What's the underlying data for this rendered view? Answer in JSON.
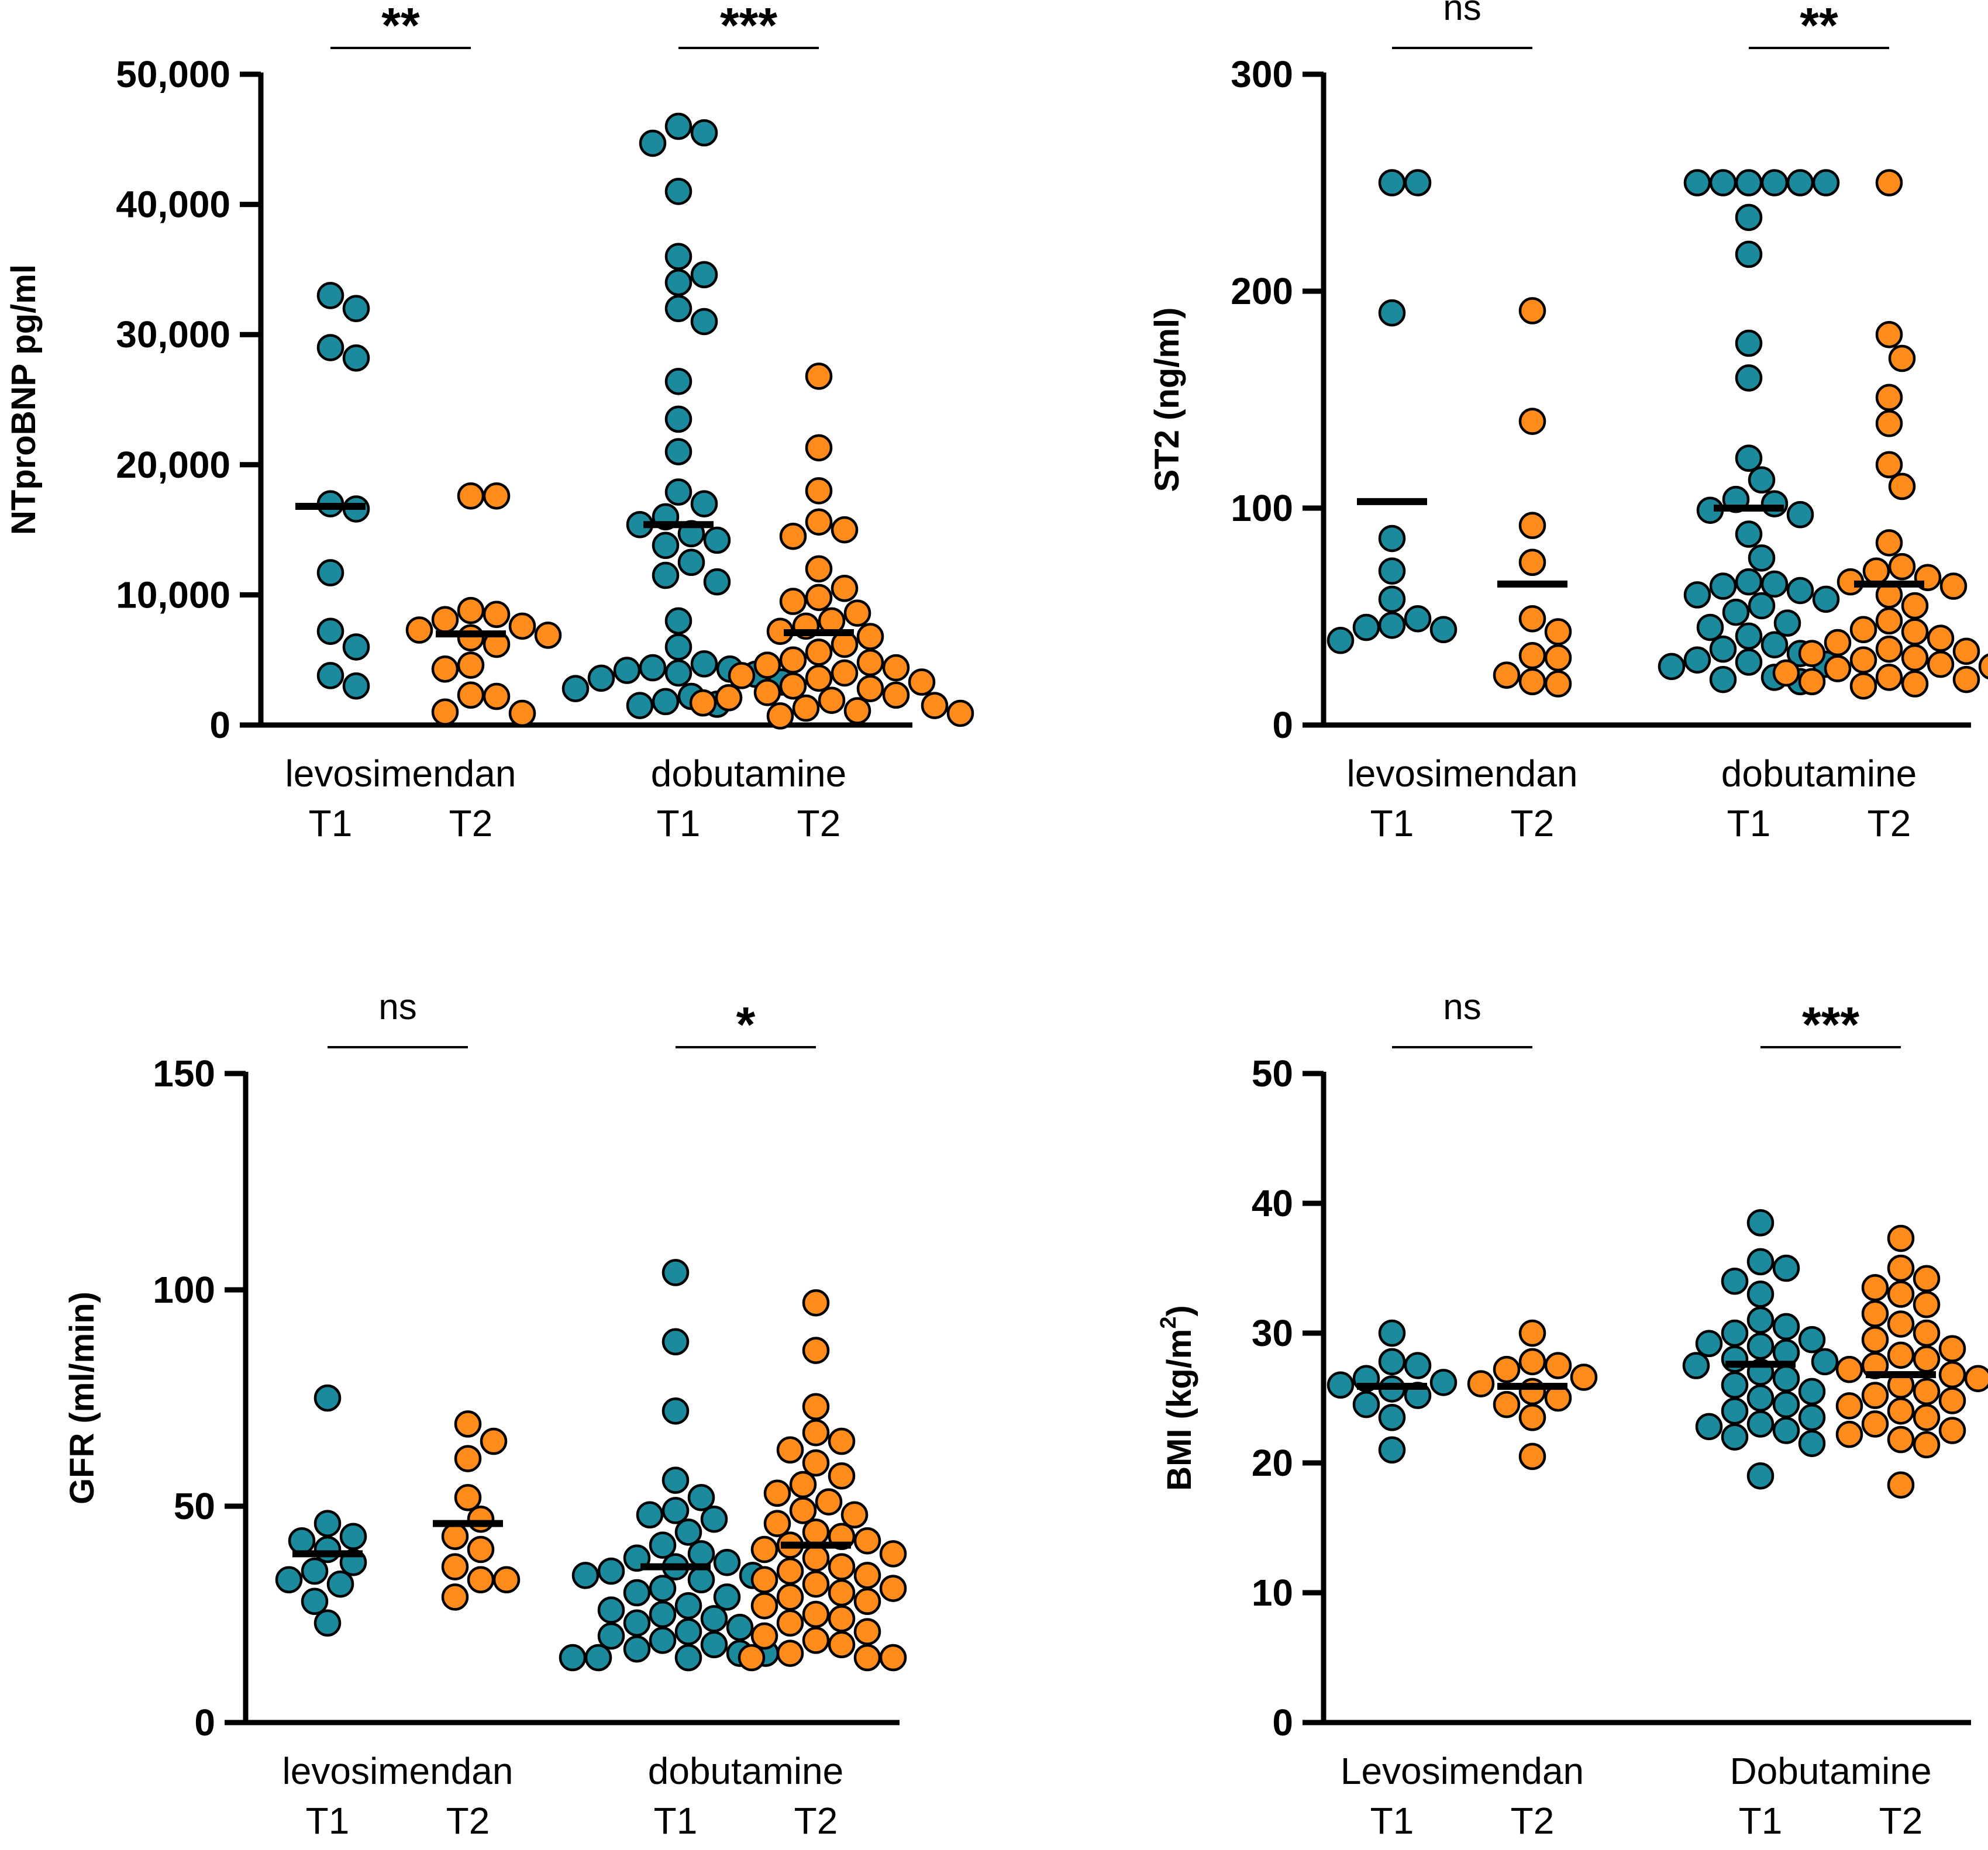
{
  "colors": {
    "t1": "#1b8a9c",
    "t2": "#ff8c1a",
    "axis": "#000000",
    "marker_edge": "#000000",
    "background": "#ffffff"
  },
  "chart_data": [
    {
      "id": "ntprobnp",
      "type": "scatter",
      "ylabel": "NTproBNP pg/ml",
      "ylim": [
        0,
        50000
      ],
      "yticks": [
        0,
        10000,
        20000,
        30000,
        40000,
        50000
      ],
      "ytick_labels": [
        "0",
        "10,000",
        "20,000",
        "30,000",
        "40,000",
        "50,000"
      ],
      "groups": [
        {
          "label": "levosimendan",
          "sig": "**",
          "series": [
            {
              "name": "T1",
              "mean": 16800,
              "values": [
                33000,
                32000,
                29000,
                28200,
                17000,
                16600,
                11700,
                7200,
                6000,
                3800,
                3000
              ]
            },
            {
              "name": "T2",
              "mean": 7000,
              "values": [
                17600,
                17600,
                8800,
                8500,
                8100,
                7600,
                7300,
                6900,
                6700,
                6200,
                4600,
                4300,
                2300,
                2200,
                1000,
                900
              ]
            }
          ]
        },
        {
          "label": "dobutamine",
          "sig": "***",
          "series": [
            {
              "name": "T1",
              "mean": 15400,
              "values": [
                46000,
                45500,
                44700,
                41000,
                36000,
                34600,
                34000,
                32000,
                31000,
                26400,
                23500,
                21000,
                17900,
                17000,
                16000,
                15400,
                14700,
                14200,
                13800,
                12500,
                11500,
                11000,
                8000,
                6000,
                4700,
                4400,
                4300,
                4200,
                4000,
                3900,
                3600,
                3300,
                2800,
                2200,
                1800,
                1600,
                1500
              ]
            },
            {
              "name": "T2",
              "mean": 7100,
              "values": [
                26800,
                21300,
                18000,
                15600,
                15000,
                14500,
                12000,
                10500,
                9800,
                9500,
                8600,
                8000,
                7600,
                7200,
                6800,
                6200,
                5600,
                5000,
                4800,
                4600,
                4400,
                4000,
                3800,
                3600,
                3300,
                3000,
                2800,
                2500,
                2300,
                2100,
                1900,
                1700,
                1500,
                1300,
                1100,
                900,
                700
              ]
            }
          ]
        }
      ]
    },
    {
      "id": "st2",
      "type": "scatter",
      "ylabel": "ST2 (ng/ml)",
      "ylim": [
        0,
        300
      ],
      "yticks": [
        0,
        100,
        200,
        300
      ],
      "ytick_labels": [
        "0",
        "100",
        "200",
        "300"
      ],
      "groups": [
        {
          "label": "levosimendan",
          "sig": "ns",
          "series": [
            {
              "name": "T1",
              "mean": 103,
              "values": [
                250,
                250,
                190,
                86,
                71,
                58,
                49,
                46,
                45,
                44,
                39
              ]
            },
            {
              "name": "T2",
              "mean": 65,
              "values": [
                191,
                140,
                92,
                75,
                49,
                43,
                32,
                31,
                23,
                20,
                19
              ]
            }
          ]
        },
        {
          "label": "dobutamine",
          "sig": "**",
          "series": [
            {
              "name": "T1",
              "mean": 100,
              "values": [
                250,
                250,
                250,
                250,
                250,
                250,
                234,
                217,
                176,
                160,
                123,
                113,
                104,
                102,
                99,
                97,
                88,
                77,
                66,
                65,
                64,
                62,
                60,
                58,
                55,
                52,
                47,
                45,
                41,
                37,
                35,
                33,
                30,
                29,
                28,
                27,
                22,
                21,
                20
              ]
            },
            {
              "name": "T2",
              "mean": 65,
              "values": [
                250,
                180,
                169,
                151,
                139,
                120,
                110,
                84,
                73,
                71,
                68,
                66,
                64,
                60,
                55,
                48,
                44,
                43,
                40,
                38,
                35,
                34,
                33,
                31,
                30,
                28,
                27,
                26,
                24,
                22,
                21,
                20,
                19,
                18,
                17
              ]
            }
          ]
        }
      ]
    },
    {
      "id": "gfr",
      "type": "scatter",
      "ylabel": "GFR (ml/min)",
      "ylim": [
        0,
        150
      ],
      "yticks": [
        0,
        50,
        100,
        150
      ],
      "ytick_labels": [
        "0",
        "50",
        "100",
        "150"
      ],
      "groups": [
        {
          "label": "levosimendan",
          "sig": "ns",
          "series": [
            {
              "name": "T1",
              "mean": 39,
              "values": [
                75,
                46,
                43,
                42,
                40,
                37,
                35,
                33,
                32,
                28,
                23
              ]
            },
            {
              "name": "T2",
              "mean": 46,
              "values": [
                69,
                65,
                61,
                52,
                47,
                43,
                40,
                36,
                33,
                33,
                29
              ]
            }
          ]
        },
        {
          "label": "dobutamine",
          "sig": "*",
          "series": [
            {
              "name": "T1",
              "mean": 36,
              "values": [
                104,
                88,
                72,
                56,
                52,
                49,
                48,
                47,
                44,
                41,
                39,
                38,
                37,
                36,
                35,
                34,
                34,
                33,
                31,
                30,
                29,
                27,
                26,
                25,
                24,
                23,
                22,
                21,
                20,
                19,
                18,
                17,
                16,
                16,
                15,
                15,
                15
              ]
            },
            {
              "name": "T2",
              "mean": 41,
              "values": [
                97,
                86,
                73,
                67,
                65,
                63,
                60,
                57,
                55,
                53,
                51,
                49,
                48,
                46,
                44,
                43,
                42,
                41,
                40,
                39,
                38,
                36,
                35,
                34,
                33,
                32,
                31,
                30,
                29,
                28,
                27,
                25,
                24,
                23,
                21,
                20,
                19,
                18,
                16,
                15,
                15,
                15
              ]
            }
          ]
        }
      ]
    },
    {
      "id": "bmi",
      "type": "scatter",
      "ylabel": "BMI (kg/m²)",
      "ylim": [
        0,
        50
      ],
      "yticks": [
        0,
        10,
        20,
        30,
        40,
        50
      ],
      "ytick_labels": [
        "0",
        "10",
        "20",
        "30",
        "40",
        "50"
      ],
      "groups": [
        {
          "label": "Levosimendan",
          "sig": "ns",
          "series": [
            {
              "name": "T1",
              "mean": 25.9,
              "values": [
                30,
                27.8,
                27.5,
                26.5,
                26.2,
                26,
                25.7,
                25.2,
                24.5,
                23.5,
                21
              ]
            },
            {
              "name": "T2",
              "mean": 25.9,
              "values": [
                30,
                27.8,
                27.5,
                27.2,
                26.6,
                26.1,
                25.5,
                25,
                24.5,
                23.5,
                20.5
              ]
            }
          ]
        },
        {
          "label": "Dobutamine",
          "sig": "***",
          "series": [
            {
              "name": "T1",
              "mean": 27.6,
              "values": [
                38.5,
                35.5,
                35,
                34,
                33,
                31,
                30.5,
                30,
                29.5,
                29.2,
                29,
                28.5,
                28,
                27.8,
                27.5,
                27,
                26.5,
                26,
                25.5,
                25,
                24.5,
                24,
                23.5,
                23,
                22.8,
                22.5,
                22,
                21.5,
                19
              ]
            },
            {
              "name": "T2",
              "mean": 26.8,
              "values": [
                37.3,
                35,
                34.2,
                33.5,
                33,
                32.2,
                31.5,
                30.7,
                30,
                29.5,
                28.8,
                28.3,
                28,
                27.5,
                27.2,
                26.8,
                26.5,
                26,
                25.5,
                25.2,
                24.8,
                24.4,
                24,
                23.5,
                23,
                22.5,
                22.2,
                21.8,
                21.4,
                18.3
              ]
            }
          ]
        }
      ]
    }
  ]
}
